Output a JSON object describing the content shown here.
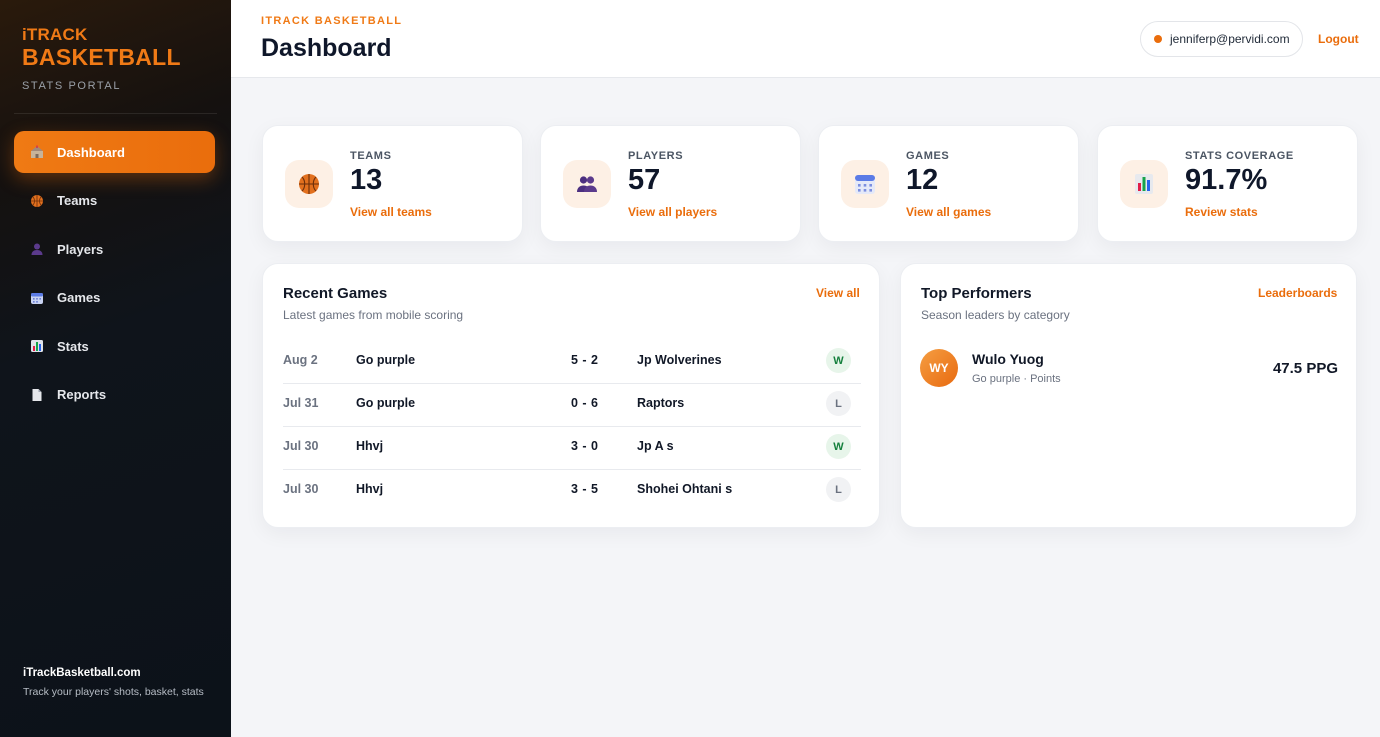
{
  "brand": {
    "top": "iTRACK",
    "main": "BASKETBALL",
    "sub": "STATS PORTAL"
  },
  "nav": [
    {
      "label": "Dashboard",
      "icon": "school-icon",
      "active": true
    },
    {
      "label": "Teams",
      "icon": "basketball-icon"
    },
    {
      "label": "Players",
      "icon": "person-icon"
    },
    {
      "label": "Games",
      "icon": "calendar-icon"
    },
    {
      "label": "Stats",
      "icon": "bar-chart-icon"
    },
    {
      "label": "Reports",
      "icon": "document-icon"
    }
  ],
  "sidebar_footer": {
    "title": "iTrackBasketball.com",
    "text": "Track your players' shots, basket, stats"
  },
  "header": {
    "kicker": "ITRACK BASKETBALL",
    "title": "Dashboard",
    "user_email": "jenniferp@pervidi.com",
    "logout": "Logout"
  },
  "stats": [
    {
      "label": "TEAMS",
      "value": "13",
      "link": "View all teams",
      "icon": "basketball-icon"
    },
    {
      "label": "PLAYERS",
      "value": "57",
      "link": "View all players",
      "icon": "people-icon"
    },
    {
      "label": "GAMES",
      "value": "12",
      "link": "View all games",
      "icon": "calendar-icon"
    },
    {
      "label": "STATS COVERAGE",
      "value": "91.7%",
      "link": "Review stats",
      "icon": "bar-chart-icon"
    }
  ],
  "recent_games": {
    "title": "Recent Games",
    "subtitle": "Latest games from mobile scoring",
    "link": "View all",
    "rows": [
      {
        "date": "Aug 2",
        "home": "Go purple",
        "score": "5 - 2",
        "away": "Jp Wolverines",
        "result": "W"
      },
      {
        "date": "Jul 31",
        "home": "Go purple",
        "score": "0 - 6",
        "away": "Raptors",
        "result": "L"
      },
      {
        "date": "Jul 30",
        "home": "Hhvj",
        "score": "3 - 0",
        "away": "Jp A s",
        "result": "W"
      },
      {
        "date": "Jul 30",
        "home": "Hhvj",
        "score": "3 - 5",
        "away": "Shohei Ohtani s",
        "result": "L"
      }
    ]
  },
  "top_performers": {
    "title": "Top Performers",
    "subtitle": "Season leaders by category",
    "link": "Leaderboards",
    "items": [
      {
        "initials": "WY",
        "name": "Wulo Yuog",
        "detail": "Go purple · Points",
        "value": "47.5 PPG"
      }
    ]
  },
  "colors": {
    "accent": "#ea6d0c",
    "win": "#15803d",
    "sidebar": "#0f141b"
  }
}
